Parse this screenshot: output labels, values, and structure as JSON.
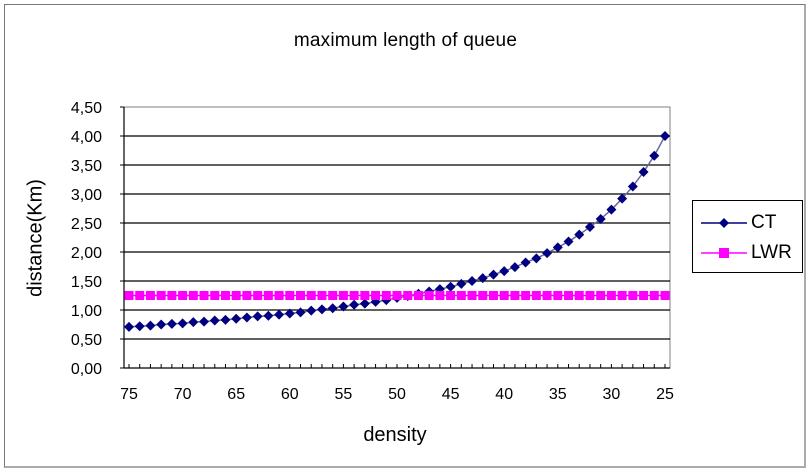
{
  "chart_data": {
    "type": "line",
    "title": "maximum length of queue",
    "xlabel": "density",
    "ylabel": "distance(Km)",
    "x": [
      75,
      74,
      73,
      72,
      71,
      70,
      69,
      68,
      67,
      66,
      65,
      64,
      63,
      62,
      61,
      60,
      59,
      58,
      57,
      56,
      55,
      54,
      53,
      52,
      51,
      50,
      49,
      48,
      47,
      46,
      45,
      44,
      43,
      42,
      41,
      40,
      39,
      38,
      37,
      36,
      35,
      34,
      33,
      32,
      31,
      30,
      29,
      28,
      27,
      26,
      25
    ],
    "x_tick_labels": [
      "75",
      "70",
      "65",
      "60",
      "55",
      "50",
      "45",
      "40",
      "35",
      "30",
      "25"
    ],
    "y_tick_labels": [
      "0,00",
      "0,50",
      "1,00",
      "1,50",
      "2,00",
      "2,50",
      "3,00",
      "3,50",
      "4,00",
      "4,50"
    ],
    "ylim": [
      0,
      4.5
    ],
    "grid": true,
    "legend_position": "right",
    "series": [
      {
        "name": "CT",
        "color": "#000080",
        "marker": "diamond",
        "values": [
          0.71,
          0.72,
          0.73,
          0.75,
          0.76,
          0.77,
          0.79,
          0.8,
          0.82,
          0.83,
          0.85,
          0.87,
          0.89,
          0.9,
          0.92,
          0.94,
          0.96,
          0.99,
          1.01,
          1.03,
          1.06,
          1.09,
          1.11,
          1.14,
          1.17,
          1.21,
          1.24,
          1.28,
          1.32,
          1.36,
          1.4,
          1.45,
          1.5,
          1.55,
          1.61,
          1.67,
          1.74,
          1.82,
          1.89,
          1.98,
          2.08,
          2.18,
          2.3,
          2.43,
          2.57,
          2.73,
          2.92,
          3.13,
          3.38,
          3.66,
          4.0
        ]
      },
      {
        "name": "LWR",
        "color": "#FF00FF",
        "marker": "square",
        "values": [
          1.25,
          1.25,
          1.25,
          1.25,
          1.25,
          1.25,
          1.25,
          1.25,
          1.25,
          1.25,
          1.25,
          1.25,
          1.25,
          1.25,
          1.25,
          1.25,
          1.25,
          1.25,
          1.25,
          1.25,
          1.25,
          1.25,
          1.25,
          1.25,
          1.25,
          1.25,
          1.25,
          1.25,
          1.25,
          1.25,
          1.25,
          1.25,
          1.25,
          1.25,
          1.25,
          1.25,
          1.25,
          1.25,
          1.25,
          1.25,
          1.25,
          1.25,
          1.25,
          1.25,
          1.25,
          1.25,
          1.25,
          1.25,
          1.25,
          1.25,
          1.25
        ]
      }
    ]
  },
  "legend": {
    "items": [
      {
        "label": "CT",
        "color": "#000080",
        "marker": "diamond"
      },
      {
        "label": "LWR",
        "color": "#FF00FF",
        "marker": "square"
      }
    ]
  }
}
